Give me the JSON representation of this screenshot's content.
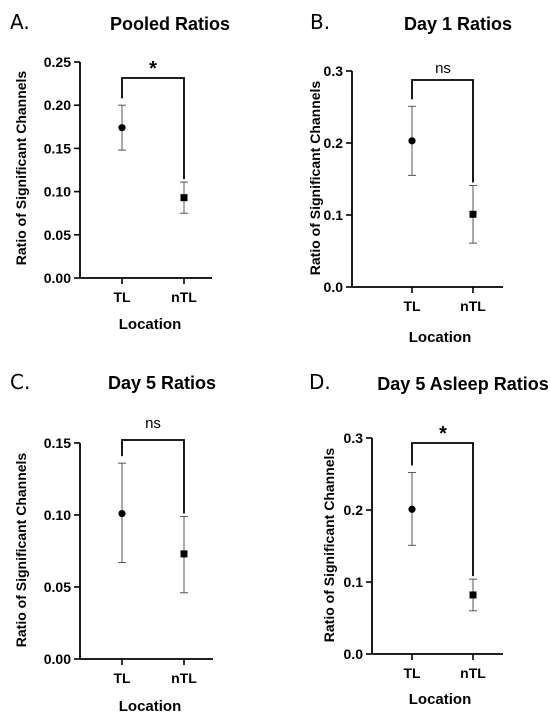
{
  "chart_data": [
    {
      "type": "scatter",
      "panel_letter": "A.",
      "title": "Pooled Ratios",
      "xlabel": "Location",
      "ylabel": "Ratio of Significant Channels",
      "categories": [
        "TL",
        "nTL"
      ],
      "values": [
        0.174,
        0.093
      ],
      "error_low": [
        0.148,
        0.075
      ],
      "error_high": [
        0.2,
        0.111
      ],
      "markers": [
        "circle",
        "square"
      ],
      "ylim": [
        0,
        0.25
      ],
      "yticks": [
        "0.00",
        "0.05",
        "0.10",
        "0.15",
        "0.20",
        "0.25"
      ],
      "significance": "*"
    },
    {
      "type": "scatter",
      "panel_letter": "B.",
      "title": "Day 1 Ratios",
      "xlabel": "Location",
      "ylabel": "Ratio of Significant Channels",
      "categories": [
        "TL",
        "nTL"
      ],
      "values": [
        0.203,
        0.101
      ],
      "error_low": [
        0.155,
        0.061
      ],
      "error_high": [
        0.251,
        0.141
      ],
      "markers": [
        "circle",
        "square"
      ],
      "ylim": [
        0,
        0.3
      ],
      "yticks": [
        "0.0",
        "0.1",
        "0.2",
        "0.3"
      ],
      "significance": "ns"
    },
    {
      "type": "scatter",
      "panel_letter": "C.",
      "title": "Day 5 Ratios",
      "xlabel": "Location",
      "ylabel": "Ratio of Significant Channels",
      "categories": [
        "TL",
        "nTL"
      ],
      "values": [
        0.101,
        0.073
      ],
      "error_low": [
        0.067,
        0.046
      ],
      "error_high": [
        0.136,
        0.099
      ],
      "markers": [
        "circle",
        "square"
      ],
      "ylim": [
        0,
        0.15
      ],
      "yticks": [
        "0.00",
        "0.05",
        "0.10",
        "0.15"
      ],
      "significance": "ns"
    },
    {
      "type": "scatter",
      "panel_letter": "D.",
      "title": "Day 5 Asleep Ratios",
      "xlabel": "Location",
      "ylabel": "Ratio of Significant Channels",
      "categories": [
        "TL",
        "nTL"
      ],
      "values": [
        0.201,
        0.082
      ],
      "error_low": [
        0.151,
        0.06
      ],
      "error_high": [
        0.252,
        0.104
      ],
      "markers": [
        "circle",
        "square"
      ],
      "ylim": [
        0,
        0.3
      ],
      "yticks": [
        "0.0",
        "0.1",
        "0.2",
        "0.3"
      ],
      "significance": "*"
    }
  ]
}
